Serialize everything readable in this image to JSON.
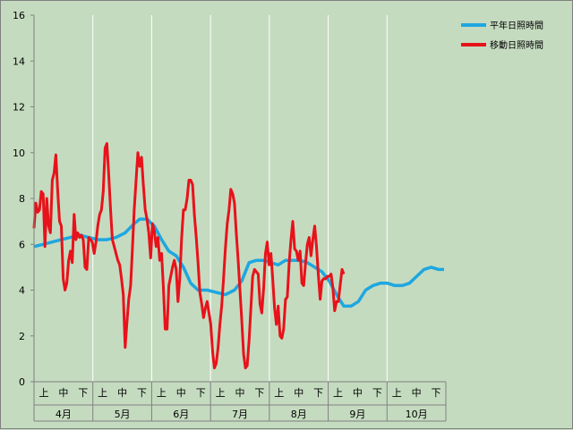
{
  "chart_data": {
    "type": "line",
    "title": "",
    "xlabel": "",
    "ylabel": "",
    "ylim": [
      0,
      16
    ],
    "y_ticks": [
      0,
      2,
      4,
      6,
      8,
      10,
      12,
      14,
      16
    ],
    "grid": "vertical lines at month boundaries",
    "legend_position": "top-right",
    "months": [
      "4月",
      "5月",
      "6月",
      "7月",
      "8月",
      "9月",
      "10月"
    ],
    "dekads": [
      "上",
      "中",
      "下"
    ],
    "x_unit": "day index from April 1",
    "series": [
      {
        "name": "平年日照時間",
        "color": "#1ea7e0",
        "points": [
          [
            0,
            5.9
          ],
          [
            5,
            6.0
          ],
          [
            10,
            6.1
          ],
          [
            15,
            6.2
          ],
          [
            20,
            6.3
          ],
          [
            25,
            6.4
          ],
          [
            30,
            6.3
          ],
          [
            35,
            6.2
          ],
          [
            40,
            6.2
          ],
          [
            45,
            6.3
          ],
          [
            50,
            6.5
          ],
          [
            55,
            6.9
          ],
          [
            58,
            7.1
          ],
          [
            62,
            7.1
          ],
          [
            66,
            6.8
          ],
          [
            70,
            6.2
          ],
          [
            74,
            5.7
          ],
          [
            78,
            5.5
          ],
          [
            82,
            5.0
          ],
          [
            86,
            4.3
          ],
          [
            90,
            4.0
          ],
          [
            95,
            4.0
          ],
          [
            100,
            3.9
          ],
          [
            105,
            3.8
          ],
          [
            110,
            4.0
          ],
          [
            114,
            4.4
          ],
          [
            118,
            5.2
          ],
          [
            122,
            5.3
          ],
          [
            126,
            5.3
          ],
          [
            130,
            5.2
          ],
          [
            134,
            5.1
          ],
          [
            138,
            5.3
          ],
          [
            142,
            5.3
          ],
          [
            146,
            5.3
          ],
          [
            150,
            5.2
          ],
          [
            154,
            5.0
          ],
          [
            158,
            4.8
          ],
          [
            162,
            4.4
          ],
          [
            166,
            3.8
          ],
          [
            170,
            3.3
          ],
          [
            174,
            3.3
          ],
          [
            178,
            3.5
          ],
          [
            182,
            4.0
          ],
          [
            186,
            4.2
          ],
          [
            190,
            4.3
          ],
          [
            194,
            4.3
          ],
          [
            198,
            4.2
          ],
          [
            202,
            4.2
          ],
          [
            206,
            4.3
          ],
          [
            210,
            4.6
          ],
          [
            214,
            4.9
          ],
          [
            218,
            5.0
          ],
          [
            222,
            4.9
          ],
          [
            225,
            4.9
          ]
        ]
      },
      {
        "name": "移動日照時間",
        "color": "#e8121a",
        "points": [
          [
            0,
            6.7
          ],
          [
            1,
            7.8
          ],
          [
            2,
            7.4
          ],
          [
            3,
            7.5
          ],
          [
            4,
            8.3
          ],
          [
            5,
            8.2
          ],
          [
            6,
            5.9
          ],
          [
            7,
            8.0
          ],
          [
            8,
            6.8
          ],
          [
            9,
            6.5
          ],
          [
            10,
            8.8
          ],
          [
            11,
            9.1
          ],
          [
            12,
            9.9
          ],
          [
            13,
            8.3
          ],
          [
            14,
            7.0
          ],
          [
            15,
            6.8
          ],
          [
            16,
            4.5
          ],
          [
            17,
            4.0
          ],
          [
            18,
            4.3
          ],
          [
            19,
            5.3
          ],
          [
            20,
            5.7
          ],
          [
            21,
            5.2
          ],
          [
            22,
            7.3
          ],
          [
            23,
            6.2
          ],
          [
            24,
            6.5
          ],
          [
            25,
            6.3
          ],
          [
            26,
            6.4
          ],
          [
            27,
            6.2
          ],
          [
            28,
            5.0
          ],
          [
            29,
            4.9
          ],
          [
            30,
            6.3
          ],
          [
            31,
            6.2
          ],
          [
            32,
            6.1
          ],
          [
            33,
            5.6
          ],
          [
            34,
            6.1
          ],
          [
            35,
            6.8
          ],
          [
            36,
            7.3
          ],
          [
            37,
            7.5
          ],
          [
            38,
            8.3
          ],
          [
            39,
            10.2
          ],
          [
            40,
            10.4
          ],
          [
            41,
            9.0
          ],
          [
            42,
            7.5
          ],
          [
            43,
            6.2
          ],
          [
            44,
            5.9
          ],
          [
            45,
            5.6
          ],
          [
            46,
            5.3
          ],
          [
            47,
            5.1
          ],
          [
            48,
            4.5
          ],
          [
            49,
            3.8
          ],
          [
            50,
            1.5
          ],
          [
            51,
            2.6
          ],
          [
            52,
            3.6
          ],
          [
            53,
            4.2
          ],
          [
            54,
            5.8
          ],
          [
            55,
            7.5
          ],
          [
            56,
            8.8
          ],
          [
            57,
            10.0
          ],
          [
            58,
            9.4
          ],
          [
            59,
            9.8
          ],
          [
            60,
            8.6
          ],
          [
            61,
            7.5
          ],
          [
            62,
            7.1
          ],
          [
            63,
            6.5
          ],
          [
            64,
            5.4
          ],
          [
            65,
            6.9
          ],
          [
            66,
            6.6
          ],
          [
            67,
            5.9
          ],
          [
            68,
            6.3
          ],
          [
            69,
            5.3
          ],
          [
            70,
            5.6
          ],
          [
            71,
            4.1
          ],
          [
            72,
            2.3
          ],
          [
            73,
            2.3
          ],
          [
            74,
            4.2
          ],
          [
            75,
            4.6
          ],
          [
            76,
            5.0
          ],
          [
            77,
            5.3
          ],
          [
            78,
            4.9
          ],
          [
            79,
            3.5
          ],
          [
            80,
            4.5
          ],
          [
            81,
            6.3
          ],
          [
            82,
            7.5
          ],
          [
            83,
            7.5
          ],
          [
            84,
            8.0
          ],
          [
            85,
            8.8
          ],
          [
            86,
            8.8
          ],
          [
            87,
            8.6
          ],
          [
            88,
            7.3
          ],
          [
            89,
            6.3
          ],
          [
            90,
            5.2
          ],
          [
            91,
            3.9
          ],
          [
            92,
            3.4
          ],
          [
            93,
            2.8
          ],
          [
            94,
            3.2
          ],
          [
            95,
            3.5
          ],
          [
            96,
            3.0
          ],
          [
            97,
            2.5
          ],
          [
            98,
            1.3
          ],
          [
            99,
            0.6
          ],
          [
            100,
            0.8
          ],
          [
            101,
            1.5
          ],
          [
            102,
            2.5
          ],
          [
            103,
            3.3
          ],
          [
            104,
            4.5
          ],
          [
            105,
            5.8
          ],
          [
            106,
            6.9
          ],
          [
            107,
            7.5
          ],
          [
            108,
            8.4
          ],
          [
            109,
            8.2
          ],
          [
            110,
            7.8
          ],
          [
            111,
            6.5
          ],
          [
            112,
            5.3
          ],
          [
            113,
            4.0
          ],
          [
            114,
            2.7
          ],
          [
            115,
            1.2
          ],
          [
            116,
            0.6
          ],
          [
            117,
            0.7
          ],
          [
            118,
            1.8
          ],
          [
            119,
            3.2
          ],
          [
            120,
            4.6
          ],
          [
            121,
            4.9
          ],
          [
            122,
            4.8
          ],
          [
            123,
            4.7
          ],
          [
            124,
            3.4
          ],
          [
            125,
            3.0
          ],
          [
            126,
            4.1
          ],
          [
            127,
            5.6
          ],
          [
            128,
            6.1
          ],
          [
            129,
            5.1
          ],
          [
            130,
            5.6
          ],
          [
            131,
            4.5
          ],
          [
            132,
            3.2
          ],
          [
            133,
            2.5
          ],
          [
            134,
            3.3
          ],
          [
            135,
            2.0
          ],
          [
            136,
            1.9
          ],
          [
            137,
            2.3
          ],
          [
            138,
            3.6
          ],
          [
            139,
            3.7
          ],
          [
            140,
            5.2
          ],
          [
            141,
            6.2
          ],
          [
            142,
            7.0
          ],
          [
            143,
            5.8
          ],
          [
            144,
            5.7
          ],
          [
            145,
            5.3
          ],
          [
            146,
            5.7
          ],
          [
            147,
            4.3
          ],
          [
            148,
            4.2
          ],
          [
            149,
            5.2
          ],
          [
            150,
            6.0
          ],
          [
            151,
            6.3
          ],
          [
            152,
            5.5
          ],
          [
            153,
            6.2
          ],
          [
            154,
            6.8
          ],
          [
            155,
            5.9
          ],
          [
            156,
            4.7
          ],
          [
            157,
            3.6
          ],
          [
            158,
            4.4
          ],
          [
            159,
            4.5
          ],
          [
            160,
            4.5
          ],
          [
            161,
            4.6
          ],
          [
            162,
            4.6
          ],
          [
            163,
            4.7
          ],
          [
            164,
            4.1
          ],
          [
            165,
            3.1
          ],
          [
            166,
            3.5
          ],
          [
            167,
            3.5
          ],
          [
            168,
            4.2
          ],
          [
            169,
            4.9
          ],
          [
            170,
            4.7
          ]
        ]
      }
    ]
  }
}
